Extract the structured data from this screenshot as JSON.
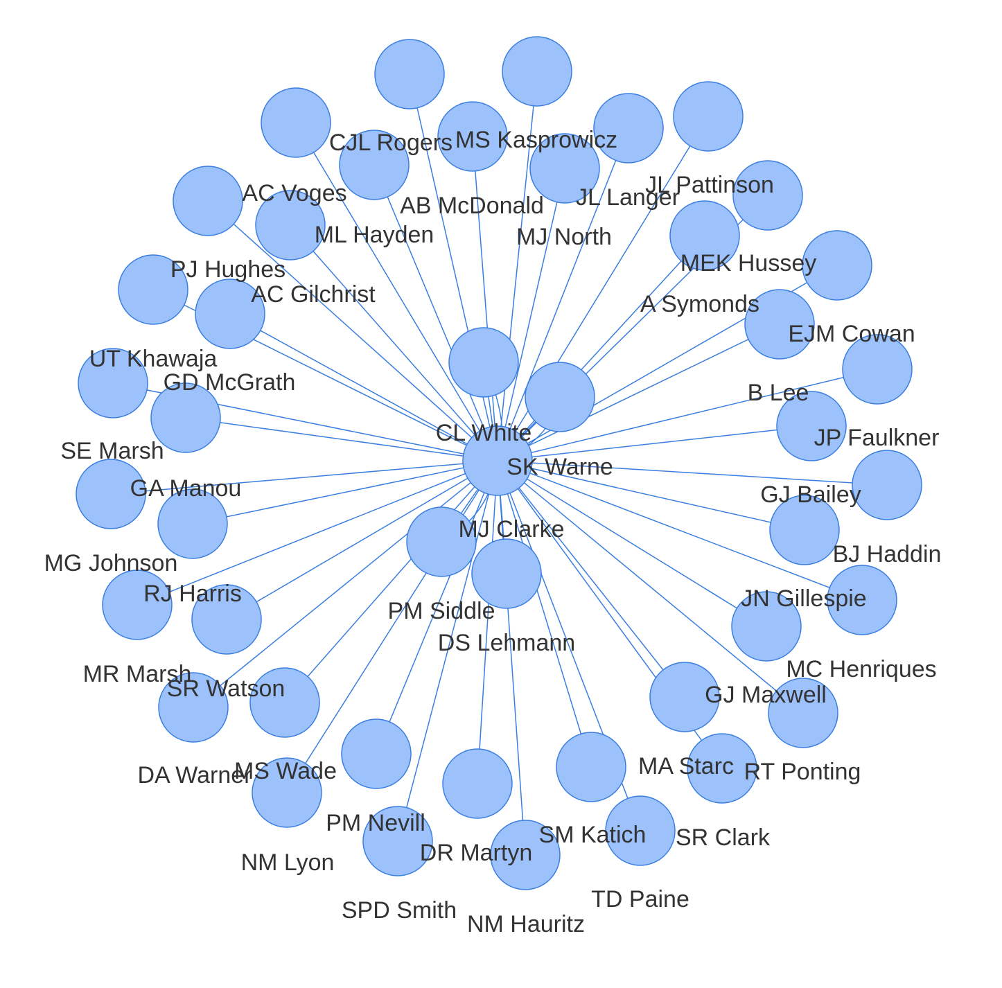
{
  "colors": {
    "node_fill": "#9cc1fb",
    "node_stroke": "#3a7ee0",
    "edge": "#3a7ee0",
    "label": "#333333"
  },
  "hub": "SK Warne",
  "labels": [
    "CL White",
    "SK Warne",
    "CJL Rogers",
    "MS Kasprowicz",
    "AC Voges",
    "AB McDonald",
    "JL Langer",
    "JL Pattinson",
    "ML Hayden",
    "MJ North",
    "PJ Hughes",
    "AC Gilchrist",
    "MEK Hussey",
    "A Symonds",
    "UT Khawaja",
    "EJM Cowan",
    "GD McGrath",
    "B Lee",
    "JP Faulkner",
    "SE Marsh",
    "GA Manou",
    "GJ Bailey",
    "MJ Clarke",
    "BJ Haddin",
    "MG Johnson",
    "RJ Harris",
    "JN Gillespie",
    "PM Siddle",
    "DS Lehmann",
    "MC Henriques",
    "MR Marsh",
    "SR Watson",
    "GJ Maxwell",
    "MA Starc",
    "DA Warner",
    "MS Wade",
    "RT Ponting",
    "SR Clark",
    "PM Nevill",
    "SM Katich",
    "DR Martyn",
    "NM Lyon",
    "TD Paine",
    "SPD Smith",
    "NM Hauritz"
  ]
}
